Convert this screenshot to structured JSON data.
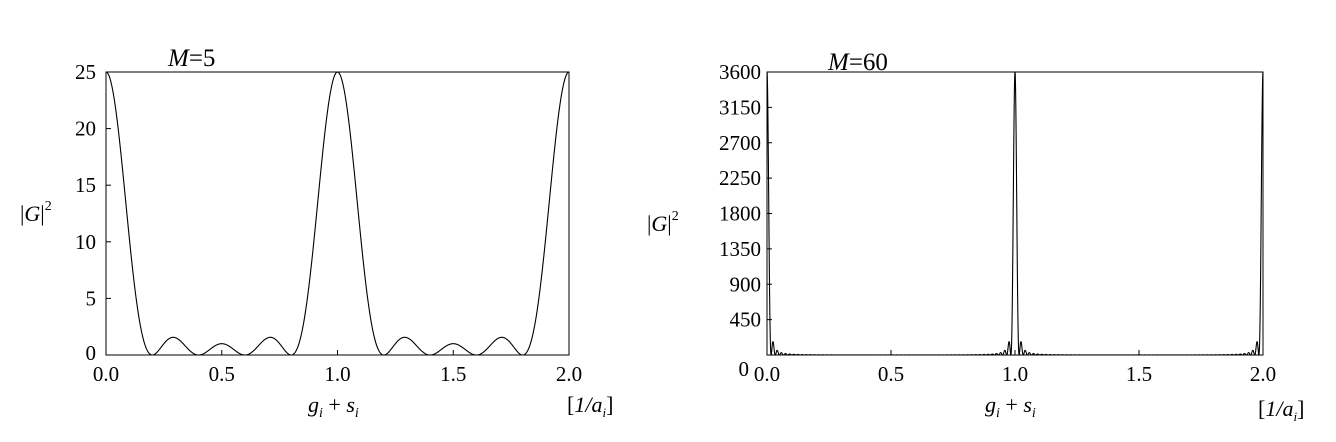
{
  "chart_data": [
    {
      "type": "line",
      "title_var": "M",
      "title_eq": "=5",
      "M": 5,
      "function": "|G|^2 = sin^2(pi*M*x) / sin^2(pi*x)",
      "ylabel_var": "G",
      "ylabel_exp": "2",
      "xlabel_g": "g",
      "xlabel_s": "s",
      "xlabel_sub": "i",
      "xlabel_plus": " + ",
      "unit_open": "[",
      "unit_text": "1/a",
      "unit_sub": "i",
      "unit_close": "]",
      "xlim": [
        0,
        2
      ],
      "ylim": [
        0,
        25
      ],
      "xticks": [
        "0.0",
        "0.5",
        "1.0",
        "1.5",
        "2.0"
      ],
      "yticks": [
        "0",
        "5",
        "10",
        "15",
        "20",
        "25"
      ],
      "x": [
        0.0,
        0.1,
        0.2,
        0.3,
        0.4,
        0.5,
        0.6,
        0.7,
        0.8,
        0.9,
        1.0,
        1.1,
        1.2,
        1.3,
        1.4,
        1.5,
        1.6,
        1.7,
        1.8,
        1.9,
        2.0
      ],
      "y": [
        25,
        10.5,
        0,
        1.5,
        0,
        1,
        0,
        1.5,
        0,
        10.5,
        25,
        10.5,
        0,
        1.5,
        0,
        1,
        0,
        1.5,
        0,
        10.5,
        25
      ]
    },
    {
      "type": "line",
      "title_var": "M",
      "title_eq": "=60",
      "M": 60,
      "function": "|G|^2 = sin^2(pi*M*x) / sin^2(pi*x)",
      "ylabel_var": "G",
      "ylabel_exp": "2",
      "xlabel_g": "g",
      "xlabel_s": "s",
      "xlabel_sub": "i",
      "xlabel_plus": " + ",
      "unit_open": "[",
      "unit_text": "1/a",
      "unit_sub": "i",
      "unit_close": "]",
      "xlim": [
        0,
        2
      ],
      "ylim": [
        0,
        3600
      ],
      "xticks": [
        "0.0",
        "0.5",
        "1.0",
        "1.5",
        "2.0"
      ],
      "yticks": [
        "0",
        "450",
        "900",
        "1350",
        "1800",
        "2250",
        "2700",
        "3150",
        "3600"
      ],
      "x": [
        0.0,
        0.5,
        1.0,
        1.5,
        2.0
      ],
      "y": [
        3600,
        0,
        3600,
        0,
        3600
      ]
    }
  ]
}
